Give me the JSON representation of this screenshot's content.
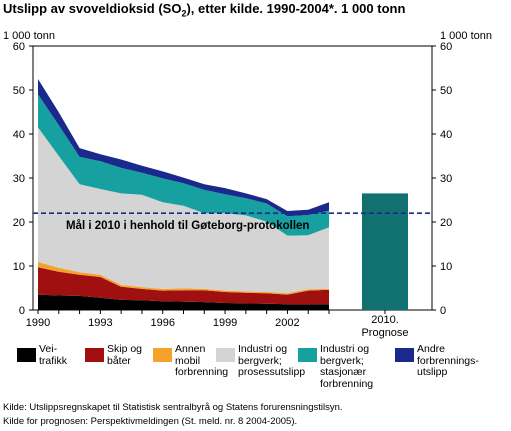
{
  "title_main": "Utslipp av svoveldioksid (SO",
  "title_sub": "2",
  "title_rest": "), etter kilde. 1990-2004*. 1 000 tonn",
  "unit_left": "1 000 tonn",
  "unit_right": "1 000 tonn",
  "target_label": "Mål i 2010 i henhold til Gøteborg-protokollen",
  "prognosis_label_year": "2010.",
  "prognosis_label_text": "Prognose",
  "sources": [
    "Kilde: Utslippsregnskapet til Statistisk sentralbyrå og Statens forurensningstilsyn.",
    "Kilde for prognosen: Perspektivmeldingen (St. meld. nr. 8 2004-2005)."
  ],
  "legend": [
    {
      "label": "Vei-\ntrafikk",
      "color": "#000000"
    },
    {
      "label": "Skip og\nbåter",
      "color": "#a01010"
    },
    {
      "label": "Annen\nmobil\nforbrenning",
      "color": "#f4a22a"
    },
    {
      "label": "Industri og\nbergverk;\nprosessutslipp",
      "color": "#d4d4d4"
    },
    {
      "label": "Industri og\nbergverk;\nstasjonær\nforbrenning",
      "color": "#17a0a0"
    },
    {
      "label": "Andre\nforbrennings-\nutslipp",
      "color": "#1a2a8c"
    }
  ],
  "chart_data": {
    "type": "area",
    "stacked": true,
    "x": [
      1990,
      1991,
      1992,
      1993,
      1994,
      1995,
      1996,
      1997,
      1998,
      1999,
      2000,
      2001,
      2002,
      2003,
      2004
    ],
    "x_ticks": [
      "1990",
      "1993",
      "1996",
      "1999",
      "2002"
    ],
    "y_ticks": [
      0,
      10,
      20,
      30,
      40,
      50,
      60
    ],
    "ylim": [
      0,
      60
    ],
    "series": [
      {
        "name": "Vei-trafikk",
        "color": "#000000",
        "values": [
          3.5,
          3.3,
          3.2,
          2.8,
          2.3,
          2.2,
          2.0,
          1.9,
          1.8,
          1.6,
          1.5,
          1.4,
          1.3,
          1.3,
          1.3
        ]
      },
      {
        "name": "Skip og båter",
        "color": "#a01010",
        "values": [
          6.2,
          5.4,
          4.8,
          4.7,
          3.0,
          2.6,
          2.4,
          2.6,
          2.7,
          2.5,
          2.4,
          2.4,
          2.2,
          3.1,
          3.3
        ]
      },
      {
        "name": "Annen mobil forbrenning",
        "color": "#f4a22a",
        "values": [
          1.2,
          0.9,
          0.6,
          0.5,
          0.4,
          0.4,
          0.4,
          0.4,
          0.3,
          0.3,
          0.3,
          0.3,
          0.3,
          0.3,
          0.2
        ]
      },
      {
        "name": "Industri og bergverk; prosessutslipp",
        "color": "#d4d4d4",
        "values": [
          30.6,
          25.4,
          20.0,
          19.5,
          20.8,
          21.0,
          19.7,
          18.8,
          17.2,
          17.6,
          17.3,
          16.0,
          13.1,
          12.3,
          14.0
        ]
      },
      {
        "name": "Industri og bergverk; stasjonær forbrenning",
        "color": "#17a0a0",
        "values": [
          7.5,
          7.0,
          6.2,
          6.3,
          5.8,
          5.0,
          5.4,
          5.1,
          5.3,
          4.3,
          3.9,
          4.1,
          4.4,
          4.6,
          3.8
        ]
      },
      {
        "name": "Andre forbrenningsutslipp",
        "color": "#1a2a8c",
        "values": [
          3.5,
          2.9,
          2.0,
          1.6,
          1.9,
          1.6,
          1.6,
          1.3,
          1.3,
          1.4,
          1.1,
          1.0,
          1.2,
          1.2,
          1.9
        ]
      }
    ],
    "target_value": 22,
    "prognosis": {
      "category": "2010. Prognose",
      "value": 26.5,
      "color": "#117070"
    }
  }
}
